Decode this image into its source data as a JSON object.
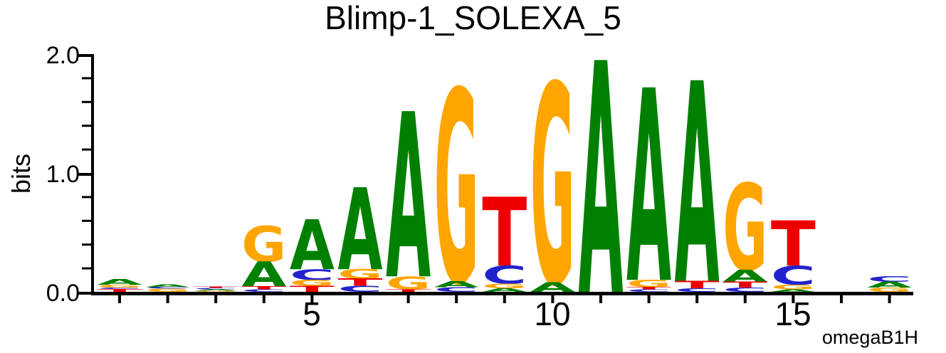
{
  "title": "Blimp-1_SOLEXA_5",
  "watermark": "omegaB1H",
  "y_axis": {
    "label": "bits",
    "ticks": [
      {
        "value": 0.0,
        "label": "0.0"
      },
      {
        "value": 1.0,
        "label": "1.0"
      },
      {
        "value": 2.0,
        "label": "2.0"
      }
    ]
  },
  "x_axis": {
    "ticks": [
      {
        "value": 5,
        "label": "5"
      },
      {
        "value": 10,
        "label": "10"
      },
      {
        "value": 15,
        "label": "15"
      }
    ]
  },
  "chart_data": {
    "type": "sequence-logo",
    "title": "Blimp-1_SOLEXA_5",
    "ylabel": "bits",
    "ylim": [
      0,
      2.0
    ],
    "y_major_ticks": [
      0.0,
      1.0,
      2.0
    ],
    "y_minor_tick_step": 0.2,
    "num_positions": 17,
    "x_tick_values": [
      5,
      10,
      15
    ],
    "consensus": "...GAAAGTGAAAGT..",
    "colors": {
      "A": "#008000",
      "C": "#2222CC",
      "G": "#FFA500",
      "T": "#EE0000"
    },
    "positions": [
      {
        "pos": 1,
        "stack": [
          [
            "A",
            0.048
          ],
          [
            "G",
            0.024
          ],
          [
            "C",
            0.012
          ],
          [
            "T",
            0.024
          ]
        ]
      },
      {
        "pos": 2,
        "stack": [
          [
            "A",
            0.024
          ],
          [
            "C",
            0.014
          ],
          [
            "G",
            0.026
          ]
        ]
      },
      {
        "pos": 3,
        "stack": [
          [
            "T",
            0.012
          ],
          [
            "C",
            0.012
          ],
          [
            "A",
            0.012
          ],
          [
            "G",
            0.008
          ]
        ]
      },
      {
        "pos": 4,
        "stack": [
          [
            "G",
            0.3
          ],
          [
            "A",
            0.21
          ],
          [
            "T",
            0.025
          ],
          [
            "C",
            0.02
          ]
        ]
      },
      {
        "pos": 5,
        "stack": [
          [
            "A",
            0.42
          ],
          [
            "C",
            0.09
          ],
          [
            "G",
            0.05
          ],
          [
            "T",
            0.05
          ]
        ]
      },
      {
        "pos": 6,
        "stack": [
          [
            "A",
            0.69
          ],
          [
            "G",
            0.08
          ],
          [
            "T",
            0.06
          ],
          [
            "C",
            0.05
          ]
        ]
      },
      {
        "pos": 7,
        "stack": [
          [
            "A",
            1.39
          ],
          [
            "G",
            0.11
          ],
          [
            "T",
            0.02
          ]
        ]
      },
      {
        "pos": 8,
        "stack": [
          [
            "G",
            1.62
          ],
          [
            "A",
            0.05
          ],
          [
            "C",
            0.04
          ]
        ]
      },
      {
        "pos": 9,
        "stack": [
          [
            "T",
            0.58
          ],
          [
            "C",
            0.15
          ],
          [
            "G",
            0.04
          ],
          [
            "A",
            0.03
          ]
        ]
      },
      {
        "pos": 10,
        "stack": [
          [
            "G",
            1.68
          ],
          [
            "A",
            0.08
          ]
        ]
      },
      {
        "pos": 11,
        "stack": [
          [
            "A",
            1.95
          ]
        ]
      },
      {
        "pos": 12,
        "stack": [
          [
            "A",
            1.62
          ],
          [
            "G",
            0.06
          ],
          [
            "T",
            0.02
          ],
          [
            "C",
            0.02
          ]
        ]
      },
      {
        "pos": 13,
        "stack": [
          [
            "A",
            1.69
          ],
          [
            "T",
            0.06
          ],
          [
            "C",
            0.03
          ]
        ]
      },
      {
        "pos": 14,
        "stack": [
          [
            "G",
            0.73
          ],
          [
            "A",
            0.1
          ],
          [
            "T",
            0.05
          ],
          [
            "C",
            0.035
          ]
        ]
      },
      {
        "pos": 15,
        "stack": [
          [
            "T",
            0.38
          ],
          [
            "C",
            0.16
          ],
          [
            "G",
            0.04
          ],
          [
            "A",
            0.02
          ]
        ]
      },
      {
        "pos": 16,
        "stack": []
      },
      {
        "pos": 17,
        "stack": [
          [
            "C",
            0.045
          ],
          [
            "A",
            0.05
          ],
          [
            "G",
            0.035
          ]
        ]
      }
    ]
  }
}
